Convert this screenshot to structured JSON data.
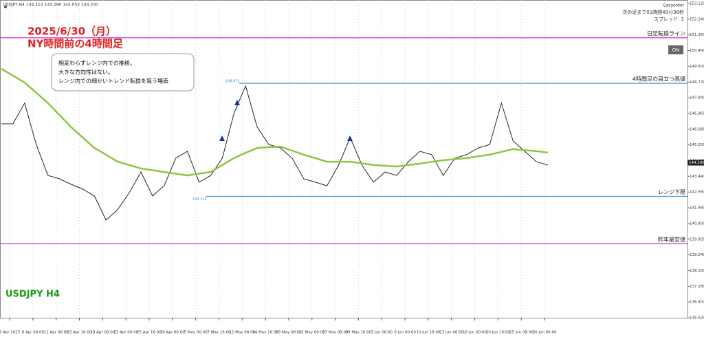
{
  "chart_data": {
    "type": "line",
    "header": "USDJPY,H4  144.114 144.290 144.052 144.200",
    "title_lines": [
      "2025/6/30（月）",
      "NY時間前の4時間足"
    ],
    "note_lines": [
      "相変わらずレンジ内での推移。",
      "大きな方向性はない。",
      "レンジ内での細かいトレンド転換を狙う場面"
    ],
    "watermark": "USDJPY H4",
    "panel_lines": [
      "Easyorder",
      "次の足まで01時間49分38秒",
      "スプレッド: 1"
    ],
    "button": "ON",
    "x_labels": [
      "3 Apr 2025",
      "8 Apr 08:00",
      "11 Apr 00:00",
      "15 Apr 16:00",
      "18 Apr 08:00",
      "23 Apr 00:00",
      "25 Apr 16:00",
      "30 Apr 08:00",
      "5 May 00:00",
      "7 May 16:00",
      "12 May 08:00",
      "14 May 16:00",
      "19 May 08:00",
      "22 May 00:00",
      "27 May 08:00",
      "29 May 16:00",
      "3 Jun 08:00",
      "6 Jun 00:00",
      "10 Jun 16:00",
      "13 Jun 08:00",
      "18 Jun 00:00",
      "20 Jun 16:00",
      "25 Jun 08:00",
      "30 Jun 00:00"
    ],
    "series": [
      {
        "name": "USDJPY",
        "color": "#222222",
        "values": [
          146.38,
          146.38,
          147.54,
          145.22,
          143.49,
          143.3,
          142.99,
          142.72,
          142.34,
          140.99,
          141.57,
          142.53,
          143.68,
          142.34,
          142.91,
          144.46,
          144.84,
          143.11,
          143.49,
          144.46,
          146.96,
          148.5,
          146.19,
          145.22,
          145.03,
          144.46,
          143.3,
          143.11,
          142.91,
          144.07,
          145.61,
          144.07,
          143.11,
          143.68,
          143.49,
          144.26,
          144.84,
          144.65,
          143.49,
          144.46,
          144.65,
          145.03,
          145.22,
          147.54,
          145.42,
          144.84,
          144.26,
          144.07
        ]
      },
      {
        "name": "MA",
        "color": "#8cc63f",
        "values": [
          149.46,
          149.08,
          148.69,
          148.12,
          147.54,
          146.87,
          146.19,
          145.61,
          145.03,
          144.65,
          144.26,
          144.07,
          143.88,
          143.78,
          143.68,
          143.59,
          143.49,
          143.59,
          143.68,
          144.07,
          144.46,
          144.75,
          145.03,
          145.07,
          145.1,
          144.88,
          144.65,
          144.46,
          144.26,
          144.26,
          144.26,
          144.17,
          144.07,
          144.03,
          143.99,
          144.07,
          144.15,
          144.25,
          144.34,
          144.4,
          144.46,
          144.56,
          144.65,
          144.81,
          144.96,
          144.9,
          144.85,
          144.77
        ]
      }
    ],
    "levels": [
      {
        "name": "日足転換ライン",
        "value": 151.2,
        "color": "#cc33cc",
        "from": "start"
      },
      {
        "name": "4時間足の目立つ高値",
        "value": 148.651,
        "value_label": "148.651",
        "color": "#3b8fd6",
        "from": "peak"
      },
      {
        "name": "レンジ下限",
        "value": 142.32,
        "value_label": "142.320",
        "color": "#3b8fd6",
        "from": "low"
      },
      {
        "name": "昨年最安値",
        "value": 139.66,
        "color": "#cc33cc",
        "from": "start"
      }
    ],
    "current_price": {
      "value": 144.2,
      "label": "144.200"
    },
    "ylim": [
      135.52,
      153.12
    ],
    "yticks": [
      {
        "value": 153.12,
        "label": "153.120"
      },
      {
        "value": 152.24,
        "label": "152.240"
      },
      {
        "value": 151.36,
        "label": "151.360"
      },
      {
        "value": 150.48,
        "label": "150.480"
      },
      {
        "value": 149.6,
        "label": "149.600"
      },
      {
        "value": 148.72,
        "label": "148.720"
      },
      {
        "value": 147.84,
        "label": "147.840"
      },
      {
        "value": 146.96,
        "label": "146.960"
      },
      {
        "value": 146.08,
        "label": "146.080"
      },
      {
        "value": 145.2,
        "label": "145.200"
      },
      {
        "value": 144.32,
        "label": "144.320"
      },
      {
        "value": 143.44,
        "label": "143.440"
      },
      {
        "value": 142.56,
        "label": "142.560"
      },
      {
        "value": 141.68,
        "label": "141.680"
      },
      {
        "value": 140.8,
        "label": "140.800"
      },
      {
        "value": 139.92,
        "label": "139.920"
      },
      {
        "value": 139.04,
        "label": "139.040"
      },
      {
        "value": 138.16,
        "label": "138.160"
      },
      {
        "value": 137.28,
        "label": "137.280"
      },
      {
        "value": 136.4,
        "label": "136.400"
      },
      {
        "value": 135.52,
        "label": "135.520"
      }
    ],
    "grid": true
  }
}
